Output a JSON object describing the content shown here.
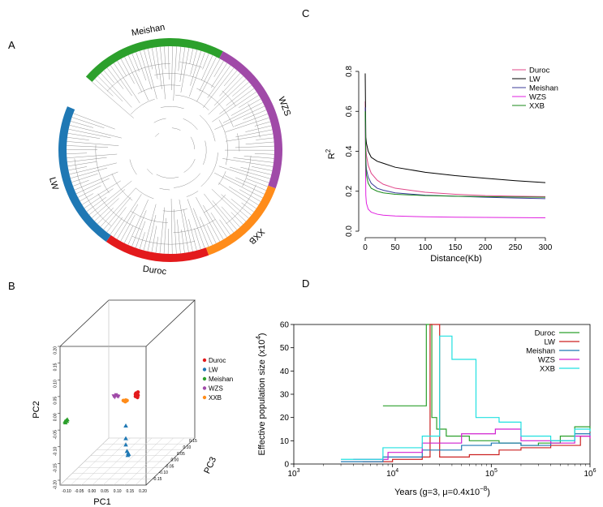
{
  "panels": {
    "A": "A",
    "B": "B",
    "C": "C",
    "D": "D"
  },
  "panel_a": {
    "arcs": [
      {
        "label": "Meishan",
        "color": "#2ca02c"
      },
      {
        "label": "WZS",
        "color": "#a04aa8"
      },
      {
        "label": "XXB",
        "color": "#ff8c1a"
      },
      {
        "label": "Duroc",
        "color": "#e31a1c"
      },
      {
        "label": "LW",
        "color": "#1f78b4"
      }
    ]
  },
  "chart_data": [
    {
      "panel": "B",
      "type": "scatter",
      "xlabel": "PC1",
      "ylabel": "PC2",
      "zlabel": "PC3",
      "x_ticks": [
        "-0.10",
        "-0.05",
        "0.00",
        "0.05",
        "0.10",
        "0.15",
        "0.20"
      ],
      "y_ticks": [
        "-0.20",
        "-0.15",
        "-0.10",
        "-0.05",
        "0.00",
        "0.05",
        "0.10",
        "0.15",
        "0.20"
      ],
      "z_ticks": [
        "-0.15",
        "-0.10",
        "-0.05",
        "0.00",
        "0.05",
        "0.10",
        "0.15"
      ],
      "legend": [
        {
          "name": "Duroc",
          "color": "#e31a1c"
        },
        {
          "name": "LW",
          "color": "#1f78b4"
        },
        {
          "name": "Meishan",
          "color": "#2ca02c"
        },
        {
          "name": "WZS",
          "color": "#a04aa8"
        },
        {
          "name": "XXB",
          "color": "#ff8c1a"
        }
      ],
      "legend_position": "right",
      "series": [
        {
          "name": "Duroc",
          "points": [
            [
              0.19,
              0.14
            ],
            [
              0.195,
              0.15
            ],
            [
              0.2,
              0.145
            ],
            [
              0.192,
              0.155
            ],
            [
              0.198,
              0.135
            ],
            [
              0.19,
              0.15
            ],
            [
              0.2,
              0.16
            ],
            [
              0.195,
              0.14
            ]
          ]
        },
        {
          "name": "LW",
          "points": [
            [
              0.15,
              0.0
            ],
            [
              0.15,
              -0.06
            ],
            [
              0.15,
              -0.09
            ],
            [
              0.155,
              -0.12
            ],
            [
              0.16,
              -0.13
            ],
            [
              0.158,
              -0.14
            ],
            [
              0.162,
              -0.135
            ]
          ]
        },
        {
          "name": "Meishan",
          "points": [
            [
              -0.1,
              0.02
            ],
            [
              -0.095,
              0.025
            ],
            [
              -0.09,
              0.03
            ],
            [
              -0.098,
              0.015
            ],
            [
              -0.092,
              0.022
            ]
          ]
        },
        {
          "name": "WZS",
          "points": [
            [
              0.1,
              0.14
            ],
            [
              0.105,
              0.135
            ],
            [
              0.11,
              0.145
            ],
            [
              0.115,
              0.14
            ],
            [
              0.12,
              0.138
            ]
          ]
        },
        {
          "name": "XXB",
          "points": [
            [
              0.14,
              0.12
            ],
            [
              0.145,
              0.118
            ],
            [
              0.15,
              0.122
            ],
            [
              0.155,
              0.12
            ],
            [
              0.148,
              0.115
            ]
          ]
        }
      ]
    },
    {
      "panel": "C",
      "type": "line",
      "xlabel": "Distance(Kb)",
      "ylabel": "R",
      "ylabel_sup": "2",
      "xlim": [
        0,
        300
      ],
      "ylim": [
        0,
        0.8
      ],
      "x_ticks": [
        0,
        50,
        100,
        150,
        200,
        250,
        300
      ],
      "y_ticks": [
        "0.0",
        "0.2",
        "0.4",
        "0.6",
        "0.8"
      ],
      "legend_position": "top-right",
      "series": [
        {
          "name": "Duroc",
          "color": "#e0468a",
          "x": [
            0,
            1,
            2,
            5,
            10,
            20,
            30,
            50,
            100,
            150,
            200,
            250,
            300
          ],
          "y": [
            0.65,
            0.42,
            0.38,
            0.33,
            0.29,
            0.255,
            0.235,
            0.215,
            0.195,
            0.185,
            0.178,
            0.175,
            0.173
          ]
        },
        {
          "name": "LW",
          "color": "#000000",
          "x": [
            0,
            1,
            2,
            5,
            10,
            20,
            30,
            50,
            100,
            150,
            200,
            250,
            300
          ],
          "y": [
            0.79,
            0.47,
            0.44,
            0.4,
            0.37,
            0.35,
            0.34,
            0.32,
            0.295,
            0.278,
            0.265,
            0.253,
            0.243
          ]
        },
        {
          "name": "Meishan",
          "color": "#3b3b9a",
          "x": [
            0,
            1,
            2,
            5,
            10,
            20,
            30,
            50,
            100,
            150,
            200,
            250,
            300
          ],
          "y": [
            0.62,
            0.36,
            0.31,
            0.27,
            0.24,
            0.215,
            0.205,
            0.192,
            0.18,
            0.175,
            0.17,
            0.166,
            0.163
          ]
        },
        {
          "name": "WZS",
          "color": "#e020e0",
          "x": [
            0,
            1,
            2,
            5,
            10,
            20,
            30,
            50,
            100,
            150,
            200,
            250,
            300
          ],
          "y": [
            0.55,
            0.18,
            0.14,
            0.11,
            0.095,
            0.085,
            0.08,
            0.076,
            0.072,
            0.07,
            0.069,
            0.068,
            0.067
          ]
        },
        {
          "name": "XXB",
          "color": "#1a8a1a",
          "x": [
            0,
            1,
            2,
            5,
            10,
            20,
            30,
            50,
            100,
            150,
            200,
            250,
            300
          ],
          "y": [
            0.6,
            0.33,
            0.28,
            0.24,
            0.215,
            0.2,
            0.192,
            0.185,
            0.178,
            0.175,
            0.173,
            0.171,
            0.17
          ]
        }
      ]
    },
    {
      "panel": "D",
      "type": "line",
      "xlabel": "Years (g=3, μ=0.4x10",
      "xlabel_sup": "−8",
      "xlabel_end": ")",
      "ylabel": "Effective population size (x10",
      "ylabel_sup": "4",
      "ylabel_end": ")",
      "x_scale": "log",
      "xlim": [
        1000,
        1000000
      ],
      "ylim": [
        0,
        60
      ],
      "x_ticks": [
        {
          "base": "10",
          "exp": "3"
        },
        {
          "base": "10",
          "exp": "4"
        },
        {
          "base": "10",
          "exp": "5"
        },
        {
          "base": "10",
          "exp": "6"
        }
      ],
      "y_ticks": [
        0,
        10,
        20,
        30,
        40,
        50,
        60
      ],
      "legend_position": "top-right",
      "series": [
        {
          "name": "Duroc",
          "color": "#2ca02c",
          "x": [
            8000,
            15000,
            22000,
            25000,
            28000,
            35000,
            60000,
            120000,
            200000,
            300000,
            500000,
            700000,
            1000000
          ],
          "y": [
            25,
            25,
            60,
            20,
            15,
            12,
            10,
            9,
            8,
            9,
            12,
            16,
            14
          ]
        },
        {
          "name": "LW",
          "color": "#cc2222",
          "x": [
            5000,
            10000,
            20000,
            24000,
            30000,
            60000,
            120000,
            200000,
            400000,
            800000,
            1000000
          ],
          "y": [
            1,
            2,
            3,
            60,
            3,
            4,
            6,
            7,
            8,
            12,
            11
          ]
        },
        {
          "name": "Meishan",
          "color": "#1f78b4",
          "x": [
            3000,
            8000,
            20000,
            50000,
            100000,
            200000,
            400000,
            700000,
            1000000
          ],
          "y": [
            1,
            3,
            6,
            8,
            9,
            8,
            10,
            13,
            12
          ]
        },
        {
          "name": "WZS",
          "color": "#d020d0",
          "x": [
            4000,
            9000,
            20000,
            50000,
            110000,
            200000,
            400000,
            700000,
            1000000
          ],
          "y": [
            2,
            5,
            9,
            13,
            15,
            10,
            9,
            12,
            11
          ]
        },
        {
          "name": "XXB",
          "color": "#20e0e0",
          "x": [
            3000,
            8000,
            20000,
            30000,
            40000,
            70000,
            120000,
            200000,
            400000,
            700000,
            1000000
          ],
          "y": [
            2,
            7,
            12,
            55,
            45,
            20,
            18,
            12,
            10,
            15,
            14
          ]
        }
      ]
    }
  ]
}
